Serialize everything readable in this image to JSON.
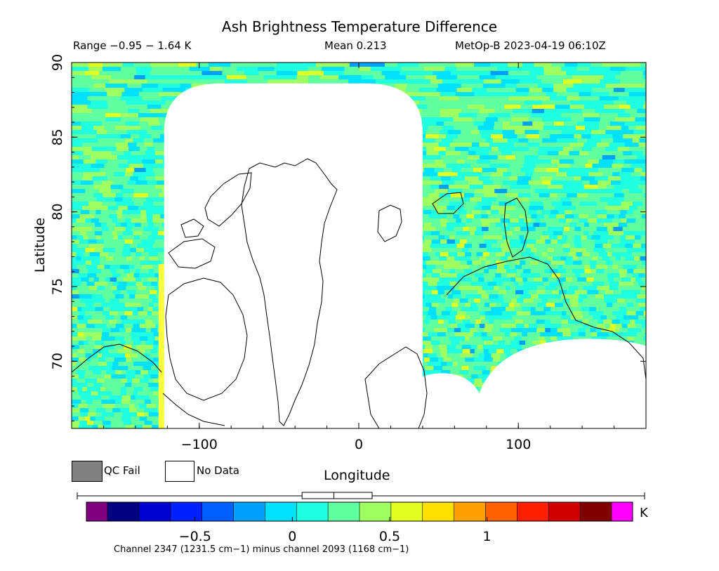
{
  "header": {
    "title": "Ash Brightness Temperature Difference",
    "range_text": "Range −0.95 − 1.64 K",
    "mean_text": "Mean 0.213",
    "satellite_text": "MetOp-B 2023-04-19 06:10Z"
  },
  "legend": {
    "qc_fail_label": "QC Fail",
    "no_data_label": "No Data",
    "qc_fail_color": "#808080",
    "no_data_color": "#ffffff"
  },
  "colorbar": {
    "unit": "K",
    "caption": "Channel 2347 (1231.5 cm−1) minus channel 2093 (1168 cm−1)",
    "ticks": [
      {
        "value": -0.5,
        "label": "−0.5"
      },
      {
        "value": 0,
        "label": "0"
      },
      {
        "value": 0.5,
        "label": "0.5"
      },
      {
        "value": 1,
        "label": "1"
      }
    ],
    "vmin": -0.95,
    "vmax": 1.64,
    "under_color": "#800080",
    "over_color": "#ff00ff",
    "colors": [
      "#000080",
      "#0000d0",
      "#0020ff",
      "#0060ff",
      "#00a0ff",
      "#00e0ff",
      "#20ffe0",
      "#60ffa0",
      "#a0ff60",
      "#e0ff20",
      "#ffe000",
      "#ffa000",
      "#ff6000",
      "#ff2000",
      "#d00000",
      "#800000"
    ],
    "boxplot": {
      "whisker_low": -0.95,
      "q1": 0.05,
      "median": 0.213,
      "q3": 0.41,
      "whisker_high": 1.64
    }
  },
  "chart_data": {
    "type": "heatmap",
    "title": "Ash Brightness Temperature Difference",
    "xlabel": "Longitude",
    "ylabel": "Latitude",
    "xlim": [
      -180,
      180
    ],
    "ylim": [
      65.5,
      90
    ],
    "x_ticks": [
      {
        "value": -100,
        "label": "−100"
      },
      {
        "value": 0,
        "label": "0"
      },
      {
        "value": 100,
        "label": "100"
      }
    ],
    "y_ticks": [
      {
        "value": 70,
        "label": "70"
      },
      {
        "value": 75,
        "label": "75"
      },
      {
        "value": 80,
        "label": "80"
      },
      {
        "value": 85,
        "label": "85"
      },
      {
        "value": 90,
        "label": "90"
      }
    ],
    "mean": 0.213,
    "range": [
      -0.95,
      1.64
    ],
    "unit": "K",
    "no_data_regions": [
      {
        "name": "greenland-gap",
        "lon_range": [
          -122,
          40
        ],
        "lat_range": [
          65.5,
          88.6
        ]
      },
      {
        "name": "siberia-gap-west",
        "lon_center": 52,
        "lon_halfwidth": 28,
        "lat_top": 69.2
      },
      {
        "name": "siberia-gap-east",
        "lon_center": 145,
        "lon_halfwidth": 73,
        "lat_top": 71.5
      }
    ]
  }
}
